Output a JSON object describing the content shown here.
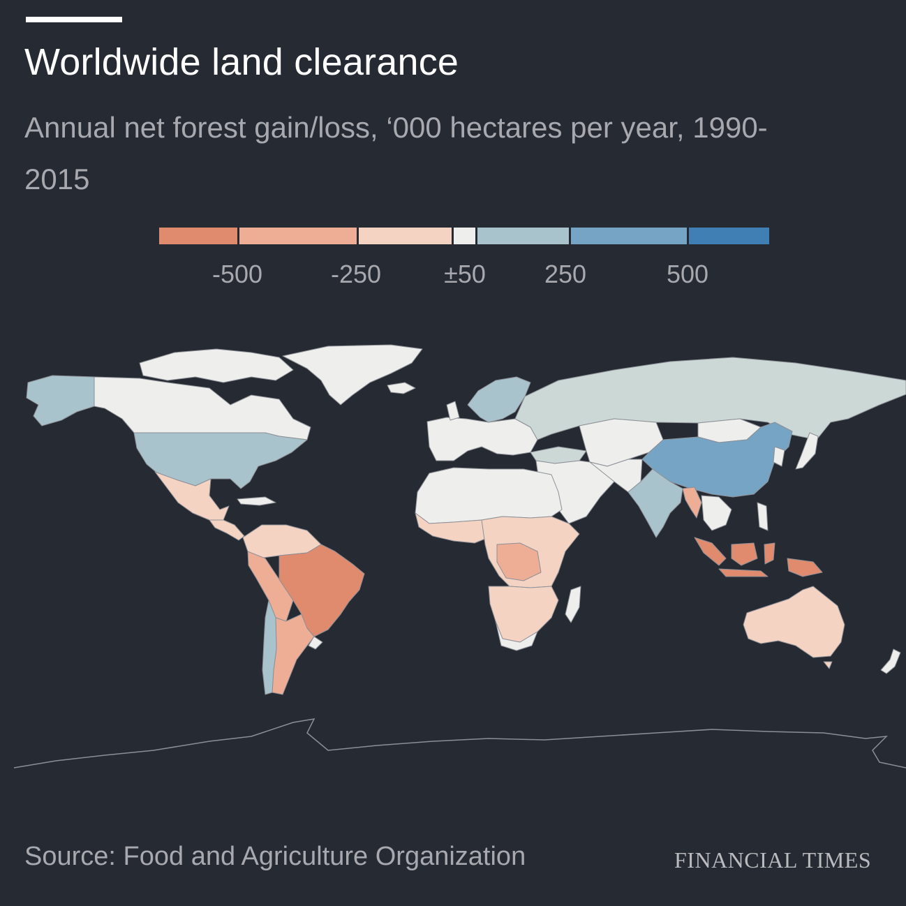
{
  "header": {
    "title": "Worldwide land clearance",
    "subtitle": "Annual net forest gain/loss, ‘000 hectares per year, 1990-2015"
  },
  "legend": {
    "bins": [
      {
        "color": "#e08a6e"
      },
      {
        "color": "#eeae96"
      },
      {
        "color": "#f5d3c3"
      },
      {
        "color": "#eeeeec"
      },
      {
        "color": "#a8c3cc"
      },
      {
        "color": "#76a4c4"
      },
      {
        "color": "#3f7fb3"
      }
    ],
    "labels": [
      "-500",
      "-250",
      "±50",
      "250",
      "500"
    ]
  },
  "footer": {
    "source": "Source: Food and Agriculture Organization",
    "brand": "FINANCIAL TIMES"
  }
}
